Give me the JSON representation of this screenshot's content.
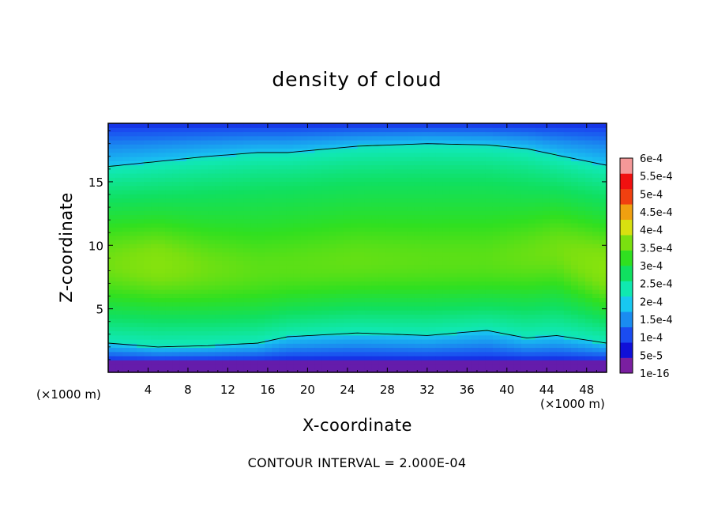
{
  "chart_data": {
    "type": "heatmap",
    "title": "density of cloud",
    "xlabel": "X-coordinate",
    "ylabel": "Z-coordinate",
    "x_unit_label": "(×1000 m)",
    "footer": "CONTOUR INTERVAL = 2.000E-04",
    "xlim": [
      0,
      50
    ],
    "ylim": [
      0,
      19.6
    ],
    "xticks": [
      4,
      8,
      12,
      16,
      20,
      24,
      28,
      32,
      36,
      40,
      44,
      48
    ],
    "yticks": [
      5,
      10,
      15
    ],
    "colorbar": {
      "labels": [
        "1e-16",
        "5e-5",
        "1e-4",
        "1.5e-4",
        "2e-4",
        "2.5e-4",
        "3e-4",
        "3.5e-4",
        "4e-4",
        "4.5e-4",
        "5e-4",
        "5.5e-4",
        "6e-4"
      ],
      "colors": [
        "#7a1fa0",
        "#1010d8",
        "#1a4cf0",
        "#1a8cf0",
        "#18c8f0",
        "#10e8b0",
        "#10e060",
        "#30e020",
        "#7ae010",
        "#d8e010",
        "#f0a010",
        "#f04010",
        "#f01010",
        "#f49898"
      ]
    },
    "profiles": [
      {
        "x": 0,
        "z_top": 19.6,
        "upper_contour": 16.2,
        "core_center": 8.5,
        "core_strength": 0.55,
        "lower_contour": 2.3
      },
      {
        "x": 5,
        "z_top": 19.6,
        "upper_contour": 16.6,
        "core_center": 8.5,
        "core_strength": 0.75,
        "lower_contour": 2.0
      },
      {
        "x": 10,
        "z_top": 19.6,
        "upper_contour": 17.0,
        "core_center": 8.0,
        "core_strength": 0.55,
        "lower_contour": 2.1
      },
      {
        "x": 15,
        "z_top": 19.6,
        "upper_contour": 17.3,
        "core_center": 7.8,
        "core_strength": 0.45,
        "lower_contour": 2.3
      },
      {
        "x": 18,
        "z_top": 19.6,
        "upper_contour": 17.3,
        "core_center": 8.0,
        "core_strength": 0.45,
        "lower_contour": 2.8
      },
      {
        "x": 25,
        "z_top": 19.6,
        "upper_contour": 17.8,
        "core_center": 8.5,
        "core_strength": 0.5,
        "lower_contour": 3.1
      },
      {
        "x": 32,
        "z_top": 19.6,
        "upper_contour": 18.0,
        "core_center": 8.5,
        "core_strength": 0.45,
        "lower_contour": 2.9
      },
      {
        "x": 38,
        "z_top": 19.6,
        "upper_contour": 17.9,
        "core_center": 8.5,
        "core_strength": 0.45,
        "lower_contour": 3.3
      },
      {
        "x": 42,
        "z_top": 19.6,
        "upper_contour": 17.6,
        "core_center": 9.0,
        "core_strength": 0.5,
        "lower_contour": 2.7
      },
      {
        "x": 45,
        "z_top": 19.6,
        "upper_contour": 17.1,
        "core_center": 9.5,
        "core_strength": 0.55,
        "lower_contour": 2.9
      },
      {
        "x": 50,
        "z_top": 19.6,
        "upper_contour": 16.3,
        "core_center": 8.0,
        "core_strength": 0.8,
        "lower_contour": 2.3
      }
    ]
  }
}
